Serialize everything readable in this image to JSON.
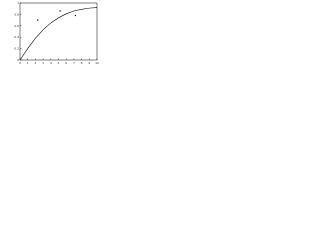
{
  "chart_data": {
    "type": "line",
    "x": [
      0,
      1,
      2,
      3,
      4,
      5,
      6,
      7,
      8,
      9,
      10
    ],
    "series": [
      {
        "mode": "line",
        "color": "#000000",
        "x": [
          0,
          1,
          2,
          3,
          4,
          5,
          6,
          7,
          8,
          9,
          10
        ],
        "values": [
          0,
          0.2,
          0.38,
          0.53,
          0.65,
          0.74,
          0.81,
          0.86,
          0.89,
          0.91,
          0.92
        ]
      },
      {
        "mode": "markers",
        "color": "#000000",
        "x": [
          2.3,
          5.2,
          7.2
        ],
        "values": [
          0.7,
          0.86,
          0.78
        ]
      }
    ],
    "xlim": [
      0,
      10
    ],
    "ylim": [
      0,
      1
    ],
    "xticks": [
      0,
      1,
      2,
      3,
      4,
      5,
      6,
      7,
      8,
      9,
      10
    ],
    "yticks": [
      0,
      0.2,
      0.4,
      0.6,
      0.8,
      1
    ]
  }
}
